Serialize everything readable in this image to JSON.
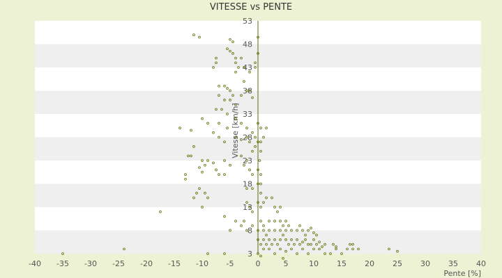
{
  "chart_data": {
    "type": "scatter",
    "title": "VITESSE vs PENTE",
    "xlabel": "Pente [%]",
    "ylabel": "Vitesse [km/h]",
    "xlim": [
      -40,
      40
    ],
    "ylim": [
      3,
      53
    ],
    "x_ticks": [
      "-40",
      "-35",
      "-30",
      "-25",
      "-20",
      "-15",
      "-10",
      "-5",
      "0",
      "5",
      "10",
      "15",
      "20",
      "25",
      "30",
      "35",
      "40"
    ],
    "y_ticks": [
      "3",
      "8",
      "13",
      "18",
      "23",
      "28",
      "33",
      "38",
      "43",
      "48",
      "53"
    ],
    "grid": "horizontal alternating bands",
    "colors": {
      "background": "#eef2d4",
      "band_white": "#ffffff",
      "band_gray": "#efefef",
      "marker": "#6b7a1a",
      "axis": "#5a6a10"
    },
    "points": [
      [
        -35,
        3
      ],
      [
        -24,
        4
      ],
      [
        -17.5,
        12
      ],
      [
        -9,
        3
      ],
      [
        -6,
        3
      ],
      [
        -11.5,
        50
      ],
      [
        -10.5,
        49.5
      ],
      [
        -5,
        49
      ],
      [
        -4.5,
        48.5
      ],
      [
        -5.5,
        47
      ],
      [
        -5,
        46.5
      ],
      [
        -4.5,
        46
      ],
      [
        -4,
        45
      ],
      [
        -4,
        44
      ],
      [
        -3.5,
        43
      ],
      [
        -3,
        45
      ],
      [
        -7.5,
        45
      ],
      [
        -7.5,
        44
      ],
      [
        -8,
        43
      ],
      [
        -4,
        42
      ],
      [
        -2.5,
        43
      ],
      [
        -1.5,
        42
      ],
      [
        -0.5,
        44
      ],
      [
        -0.5,
        43
      ],
      [
        0,
        49.5
      ],
      [
        0,
        46
      ],
      [
        -2.5,
        40
      ],
      [
        -7,
        39
      ],
      [
        -6,
        39
      ],
      [
        -5.5,
        38.5
      ],
      [
        -5,
        38
      ],
      [
        -4.5,
        37
      ],
      [
        -7,
        37
      ],
      [
        -6,
        36
      ],
      [
        -5,
        36
      ],
      [
        -3,
        37
      ],
      [
        -2,
        38
      ],
      [
        -1.5,
        38
      ],
      [
        -1,
        36.5
      ],
      [
        -7.5,
        34
      ],
      [
        -6.5,
        34
      ],
      [
        -5.5,
        33
      ],
      [
        -4,
        35
      ],
      [
        -10,
        32
      ],
      [
        -9,
        31
      ],
      [
        -7,
        31
      ],
      [
        -5.5,
        30
      ],
      [
        -4,
        32
      ],
      [
        -3,
        31
      ],
      [
        -2,
        30
      ],
      [
        -1,
        29
      ],
      [
        0,
        31
      ],
      [
        0.5,
        30
      ],
      [
        1.5,
        30
      ],
      [
        -14,
        30
      ],
      [
        -12,
        29.5
      ],
      [
        -8,
        29
      ],
      [
        -7,
        28
      ],
      [
        -6,
        27
      ],
      [
        -4,
        28
      ],
      [
        -3,
        27.5
      ],
      [
        -2,
        28
      ],
      [
        -1.5,
        27
      ],
      [
        -0.5,
        28
      ],
      [
        0.5,
        27
      ],
      [
        1,
        28
      ],
      [
        -11.5,
        26
      ],
      [
        -12,
        24
      ],
      [
        -12.5,
        24
      ],
      [
        -9,
        23
      ],
      [
        -8,
        22.5
      ],
      [
        -6,
        23
      ],
      [
        -5,
        22
      ],
      [
        -3,
        24
      ],
      [
        -2,
        23
      ],
      [
        -1,
        25
      ],
      [
        -0.5,
        26
      ],
      [
        0,
        27
      ],
      [
        0.5,
        25
      ],
      [
        0.3,
        23
      ],
      [
        -10,
        23
      ],
      [
        -9.5,
        22
      ],
      [
        -10.5,
        21.5
      ],
      [
        -10,
        20.5
      ],
      [
        -7.5,
        21
      ],
      [
        -7,
        20
      ],
      [
        -6,
        20
      ],
      [
        -2.5,
        22
      ],
      [
        -1.5,
        21
      ],
      [
        -1,
        20
      ],
      [
        0,
        21
      ],
      [
        0.5,
        20
      ],
      [
        -13,
        20
      ],
      [
        -13,
        19
      ],
      [
        -10.5,
        17
      ],
      [
        -11,
        16
      ],
      [
        -9.5,
        16
      ],
      [
        -11.5,
        15
      ],
      [
        -9,
        15
      ],
      [
        -10,
        13
      ],
      [
        -2,
        17
      ],
      [
        -1,
        17
      ],
      [
        0,
        18
      ],
      [
        0.5,
        18
      ],
      [
        0.5,
        16
      ],
      [
        -2,
        14
      ],
      [
        -1.5,
        13
      ],
      [
        -1,
        12
      ],
      [
        0,
        14
      ],
      [
        0.5,
        13
      ],
      [
        1,
        14
      ],
      [
        1.5,
        15
      ],
      [
        2.5,
        15
      ],
      [
        3,
        13
      ],
      [
        3.5,
        12
      ],
      [
        4,
        13
      ],
      [
        -6,
        11
      ],
      [
        -4,
        10
      ],
      [
        -2.5,
        10
      ],
      [
        -1,
        9
      ],
      [
        0.5,
        10
      ],
      [
        1,
        9
      ],
      [
        2,
        10
      ],
      [
        3,
        10
      ],
      [
        4,
        10
      ],
      [
        4.5,
        9
      ],
      [
        5,
        10
      ],
      [
        -5,
        8
      ],
      [
        -3,
        9
      ],
      [
        -2,
        8
      ],
      [
        0,
        8
      ],
      [
        1,
        8
      ],
      [
        1.5,
        7
      ],
      [
        2,
        8
      ],
      [
        3,
        8
      ],
      [
        4,
        8
      ],
      [
        4.5,
        7
      ],
      [
        5,
        8
      ],
      [
        5.5,
        9
      ],
      [
        6,
        8
      ],
      [
        7,
        8
      ],
      [
        7.5,
        9
      ],
      [
        8,
        8
      ],
      [
        8.5,
        7
      ],
      [
        9,
        8
      ],
      [
        9.5,
        8.5
      ],
      [
        10,
        7.5
      ],
      [
        10.5,
        7
      ],
      [
        0,
        6
      ],
      [
        0.5,
        5
      ],
      [
        1,
        6
      ],
      [
        1.5,
        5
      ],
      [
        2,
        6
      ],
      [
        2.5,
        5
      ],
      [
        3,
        6
      ],
      [
        3.5,
        5
      ],
      [
        4,
        6
      ],
      [
        5,
        6
      ],
      [
        5.5,
        5
      ],
      [
        6,
        6
      ],
      [
        6.5,
        5
      ],
      [
        7,
        6
      ],
      [
        7.5,
        5
      ],
      [
        8,
        5.5
      ],
      [
        8.5,
        6
      ],
      [
        9,
        5
      ],
      [
        9.5,
        5
      ],
      [
        10,
        6
      ],
      [
        10.5,
        5
      ],
      [
        11,
        5.5
      ],
      [
        11.5,
        4.5
      ],
      [
        12,
        5
      ],
      [
        1,
        4
      ],
      [
        2,
        4
      ],
      [
        3,
        3
      ],
      [
        4,
        4
      ],
      [
        5,
        3.5
      ],
      [
        6,
        4
      ],
      [
        7,
        3
      ],
      [
        8,
        4
      ],
      [
        9,
        3
      ],
      [
        10,
        4
      ],
      [
        11,
        4
      ],
      [
        12,
        3
      ],
      [
        13,
        3
      ],
      [
        14,
        4
      ],
      [
        15,
        3
      ],
      [
        16,
        4
      ],
      [
        17,
        4
      ],
      [
        18,
        4
      ],
      [
        13.5,
        5
      ],
      [
        14,
        4.5
      ],
      [
        16.5,
        5
      ],
      [
        17,
        5
      ],
      [
        23.5,
        4
      ],
      [
        25,
        3.5
      ],
      [
        0,
        3
      ],
      [
        0.5,
        2.5
      ],
      [
        4.5,
        2
      ]
    ]
  }
}
